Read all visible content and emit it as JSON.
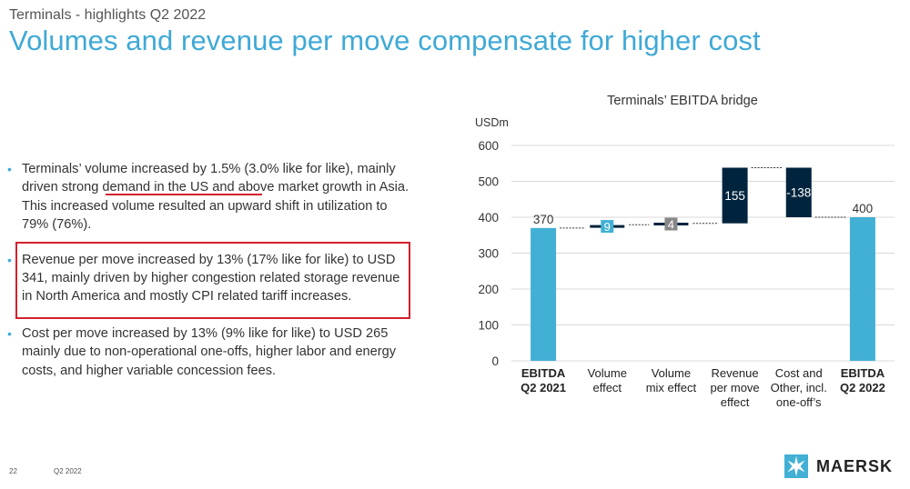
{
  "header": {
    "supertitle": "Terminals - highlights Q2 2022",
    "title": "Volumes and revenue per move compensate for higher cost"
  },
  "bullets": [
    "Terminals’ volume increased by 1.5% (3.0% like for like), mainly driven strong demand in the US and above market growth in Asia. This increased volume resulted an upward shift in utilization to 79% (76%).",
    "Revenue per move increased by 13% (17% like for like) to USD 341, mainly driven by higher congestion related storage revenue in North America and mostly CPI related tariff increases.",
    "Cost per move increased by 13% (9% like for like) to USD 265 mainly due to non-operational one-offs, higher labor and energy costs, and higher variable concession fees."
  ],
  "footer": {
    "page": "22",
    "period": "Q2 2022"
  },
  "logo": {
    "text": "MAERSK",
    "icon": "star-icon"
  },
  "colors": {
    "accent": "#42b0d5",
    "dark": "#00243d",
    "gray": "#878787",
    "highlight": "#d4202c",
    "title": "#3fa9d6"
  },
  "chart_data": {
    "type": "waterfall",
    "title": "Terminals’ EBITDA bridge",
    "ylabel": "USDm",
    "ylim": [
      0,
      600
    ],
    "yticks": [
      0,
      100,
      200,
      300,
      400,
      500,
      600
    ],
    "grid": true,
    "categories": [
      "EBITDA Q2 2021",
      "Volume effect",
      "Volume mix effect",
      "Revenue per move effect",
      "Cost and Other, incl. one-off’s",
      "EBITDA Q2 2022"
    ],
    "category_lines": [
      [
        "EBITDA",
        "Q2 2021"
      ],
      [
        "Volume",
        "effect"
      ],
      [
        "Volume",
        "mix effect"
      ],
      [
        "Revenue",
        "per move",
        "effect"
      ],
      [
        "Cost and",
        "Other, incl.",
        "one-off’s"
      ],
      [
        "EBITDA",
        "Q2 2022"
      ]
    ],
    "category_bold": [
      true,
      false,
      false,
      false,
      false,
      true
    ],
    "values": [
      370,
      9,
      4,
      155,
      -138,
      400
    ],
    "value_labels": [
      "370",
      "9",
      "4",
      "155",
      "-138",
      "400"
    ],
    "kinds": [
      "total",
      "delta",
      "delta",
      "delta",
      "delta",
      "total"
    ]
  }
}
